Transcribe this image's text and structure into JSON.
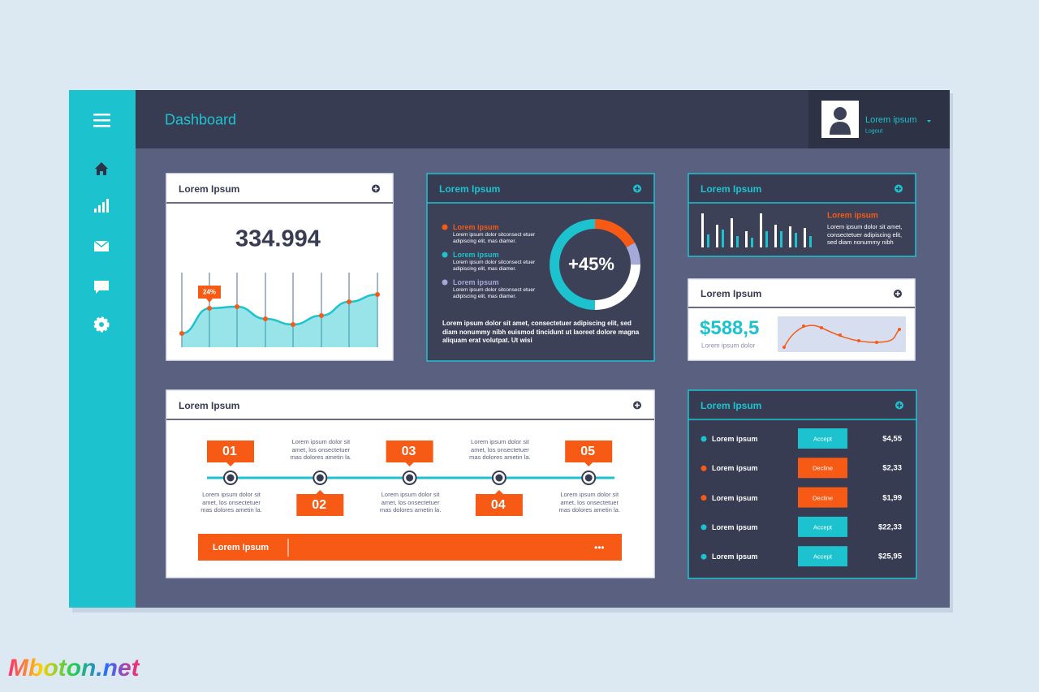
{
  "header": {
    "title": "Dashboard",
    "user": {
      "name": "Lorem ipsum",
      "link": "Logout"
    }
  },
  "stat_card": {
    "title": "Lorem Ipsum",
    "value": "334.994",
    "badge": "24%"
  },
  "donut_card": {
    "title": "Lorem Ipsum",
    "items": [
      {
        "label": "Lorem ipsum",
        "text": "Lorem ipsum dolor sitconsect etuer adipiscing elit, mas diamer."
      },
      {
        "label": "Lorem ipsum",
        "text": "Lorem ipsum dolor sitconsect etuer adipiscing elit, mas diamer."
      },
      {
        "label": "Lorem ipsum",
        "text": "Lorem ipsum dolor sitconsect etuer adipiscing elit, mas diamer."
      }
    ],
    "center": "+45%",
    "paragraph": "Lorem ipsum dolor sit amet, consectetuer adipiscing elit, sed diam nonummy nibh euismod tincidunt ut laoreet dolore magna aliquam erat volutpat. Ut wisi"
  },
  "bars_card": {
    "title": "Lorem Ipsum",
    "subtitle": "Lorem ipsum",
    "text": "Lorem ipsum dolor sit amet, consectetuer adipiscing elit, sed diam nonummy nibh"
  },
  "price_card": {
    "title": "Lorem Ipsum",
    "value": "$588,5",
    "caption": "Lorem ipsum dolor"
  },
  "timeline": {
    "title": "Lorem Ipsum",
    "steps": [
      {
        "number": "01",
        "text": "Lorem ipsum dolor sit amet, los onsectetuer mas dolores ametin la."
      },
      {
        "number": "02",
        "text": "Lorem ipsum dolor sit amet, los onsectetuer mas dolores ametin la."
      },
      {
        "number": "03",
        "text": "Lorem ipsum dolor sit amet, los onsectetuer mas dolores ametin la."
      },
      {
        "number": "04",
        "text": "Lorem ipsum dolor sit amet, los onsectetuer mas dolores ametin la."
      },
      {
        "number": "05",
        "text": "Lorem ipsum dolor sit amet, los onsectetuer mas dolores ametin la."
      }
    ],
    "footer": "Lorem Ipsum",
    "more": "•••"
  },
  "list": {
    "title": "Lorem Ipsum",
    "rows": [
      {
        "name": "Lorem ipsum",
        "action": "Accept",
        "amount": "$4,55"
      },
      {
        "name": "Lorem ipsum",
        "action": "Decline",
        "amount": "$2,33"
      },
      {
        "name": "Lorem ipsum",
        "action": "Decline",
        "amount": "$1,99"
      },
      {
        "name": "Lorem ipsum",
        "action": "Accept",
        "amount": "$22,33"
      },
      {
        "name": "Lorem ipsum",
        "action": "Accept",
        "amount": "$25,95"
      }
    ]
  },
  "watermark": "Mboton.net"
}
